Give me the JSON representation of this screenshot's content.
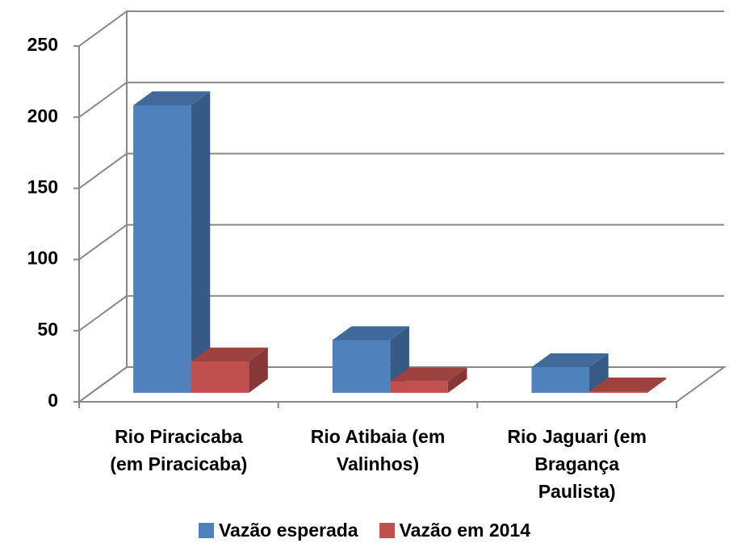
{
  "chart_data": {
    "type": "bar3d",
    "categories": [
      "Rio Piracicaba\n(em Piracicaba)",
      "Rio Atibaia (em\nValinhos)",
      "Rio Jaguari (em\nBragança\nPaulista)"
    ],
    "series": [
      {
        "name": "Vazão esperada",
        "color": "#4f81bd",
        "values": [
          202,
          37,
          18
        ]
      },
      {
        "name": "Vazão em 2014",
        "color": "#c0504d",
        "values": [
          22,
          8,
          1
        ]
      }
    ],
    "ylim": [
      0,
      250
    ],
    "yticks": [
      0,
      50,
      100,
      150,
      200,
      250
    ],
    "grid": true,
    "legend": "bottom"
  }
}
